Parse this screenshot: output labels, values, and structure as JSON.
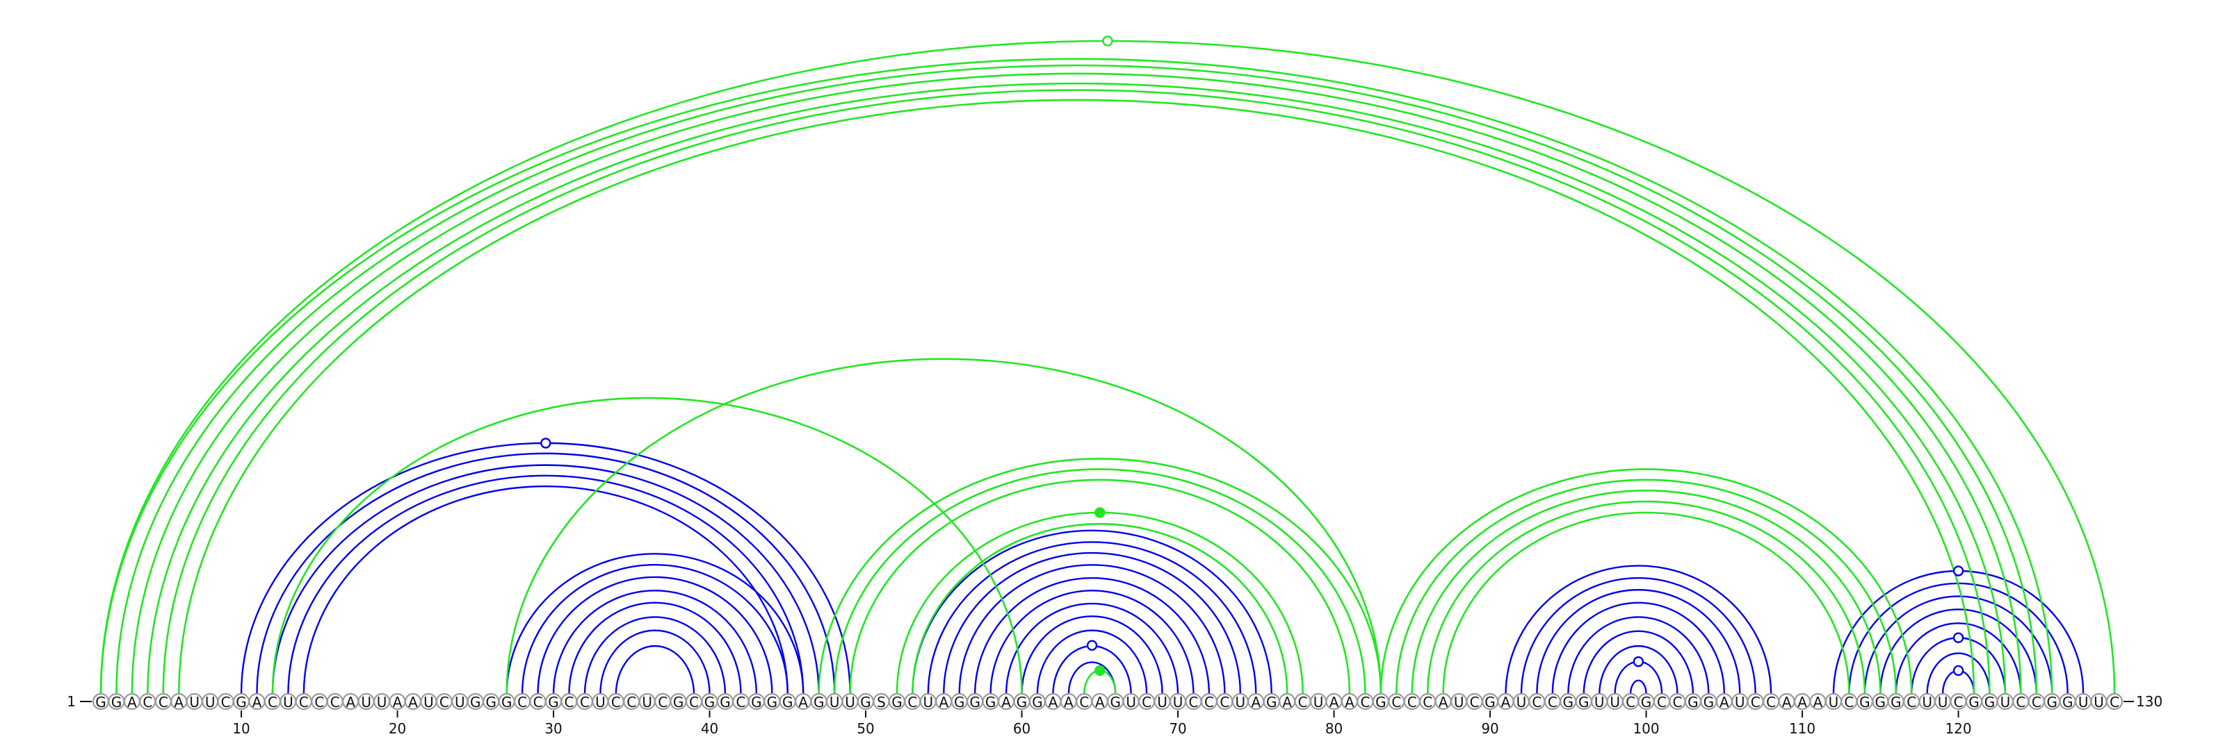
{
  "sequence": "GGACCAUUCGACUCCCAUUAAUCUGGGCCGCCUCCUCGCGGCGGGAGUUGSGCUAGGGAGGAACAGUCUUCCCUAGACUAACGCCCAUCGAUCCGGUUCGCCGGAUCCAAAUCGGGCUUCGGUCCGGUUC",
  "start_label": "1",
  "end_label": "130",
  "ticks": [
    10,
    20,
    30,
    40,
    50,
    60,
    70,
    80,
    90,
    100,
    110,
    120
  ],
  "colors": {
    "blue": "#0000ee",
    "green": "#22e622"
  },
  "arc_groups": [
    {
      "color": "blue",
      "pairs": [
        [
          10,
          49
        ],
        [
          11,
          48
        ],
        [
          12,
          47
        ],
        [
          13,
          46
        ],
        [
          14,
          45
        ]
      ]
    },
    {
      "color": "blue",
      "pairs": [
        [
          27,
          46
        ],
        [
          28,
          45
        ],
        [
          29,
          44
        ],
        [
          30,
          43
        ],
        [
          31,
          42
        ],
        [
          32,
          41
        ],
        [
          33,
          40
        ],
        [
          34,
          39
        ]
      ]
    },
    {
      "color": "blue",
      "pairs": [
        [
          53,
          76
        ],
        [
          54,
          75
        ],
        [
          55,
          74
        ],
        [
          56,
          73
        ],
        [
          57,
          72
        ],
        [
          58,
          71
        ],
        [
          59,
          70
        ],
        [
          60,
          69
        ],
        [
          61,
          68
        ],
        [
          62,
          67
        ],
        [
          63,
          66
        ]
      ]
    },
    {
      "color": "blue",
      "pairs": [
        [
          91,
          108
        ],
        [
          92,
          107
        ],
        [
          93,
          106
        ],
        [
          94,
          105
        ],
        [
          95,
          104
        ],
        [
          96,
          103
        ],
        [
          97,
          102
        ],
        [
          98,
          101
        ],
        [
          99,
          100
        ]
      ]
    },
    {
      "color": "blue",
      "pairs": [
        [
          112,
          128
        ],
        [
          113,
          127
        ],
        [
          114,
          126
        ],
        [
          115,
          125
        ],
        [
          116,
          124
        ],
        [
          117,
          123
        ],
        [
          118,
          122
        ],
        [
          119,
          121
        ]
      ]
    },
    {
      "color": "green",
      "pairs": [
        [
          1,
          126
        ],
        [
          2,
          125
        ],
        [
          3,
          124
        ],
        [
          4,
          123
        ],
        [
          5,
          122
        ],
        [
          6,
          121
        ]
      ]
    },
    {
      "color": "green",
      "pairs": [
        [
          1,
          130
        ]
      ]
    },
    {
      "color": "green",
      "pairs": [
        [
          12,
          60
        ]
      ]
    },
    {
      "color": "green",
      "pairs": [
        [
          27,
          83
        ]
      ]
    },
    {
      "color": "green",
      "pairs": [
        [
          47,
          83
        ],
        [
          48,
          82
        ],
        [
          49,
          81
        ]
      ]
    },
    {
      "color": "green",
      "pairs": [
        [
          52,
          78
        ],
        [
          53,
          77
        ]
      ]
    },
    {
      "color": "green",
      "pairs": [
        [
          64,
          66
        ]
      ]
    },
    {
      "color": "green",
      "pairs": [
        [
          83,
          117
        ],
        [
          84,
          116
        ],
        [
          85,
          115
        ],
        [
          86,
          114
        ],
        [
          87,
          113
        ]
      ]
    }
  ],
  "apex_markers": [
    {
      "pair": [
        1,
        130
      ],
      "color": "green",
      "filled": false
    },
    {
      "pair": [
        10,
        49
      ],
      "color": "blue",
      "filled": false
    },
    {
      "pair": [
        52,
        78
      ],
      "color": "green",
      "filled": true
    },
    {
      "pair": [
        62,
        67
      ],
      "color": "blue",
      "filled": false
    },
    {
      "pair": [
        64,
        66
      ],
      "color": "green",
      "filled": true
    },
    {
      "pair": [
        98,
        101
      ],
      "color": "blue",
      "filled": false
    },
    {
      "pair": [
        112,
        128
      ],
      "color": "blue",
      "filled": false
    },
    {
      "pair": [
        117,
        123
      ],
      "color": "blue",
      "filled": false
    },
    {
      "pair": [
        119,
        121
      ],
      "color": "blue",
      "filled": false
    }
  ]
}
